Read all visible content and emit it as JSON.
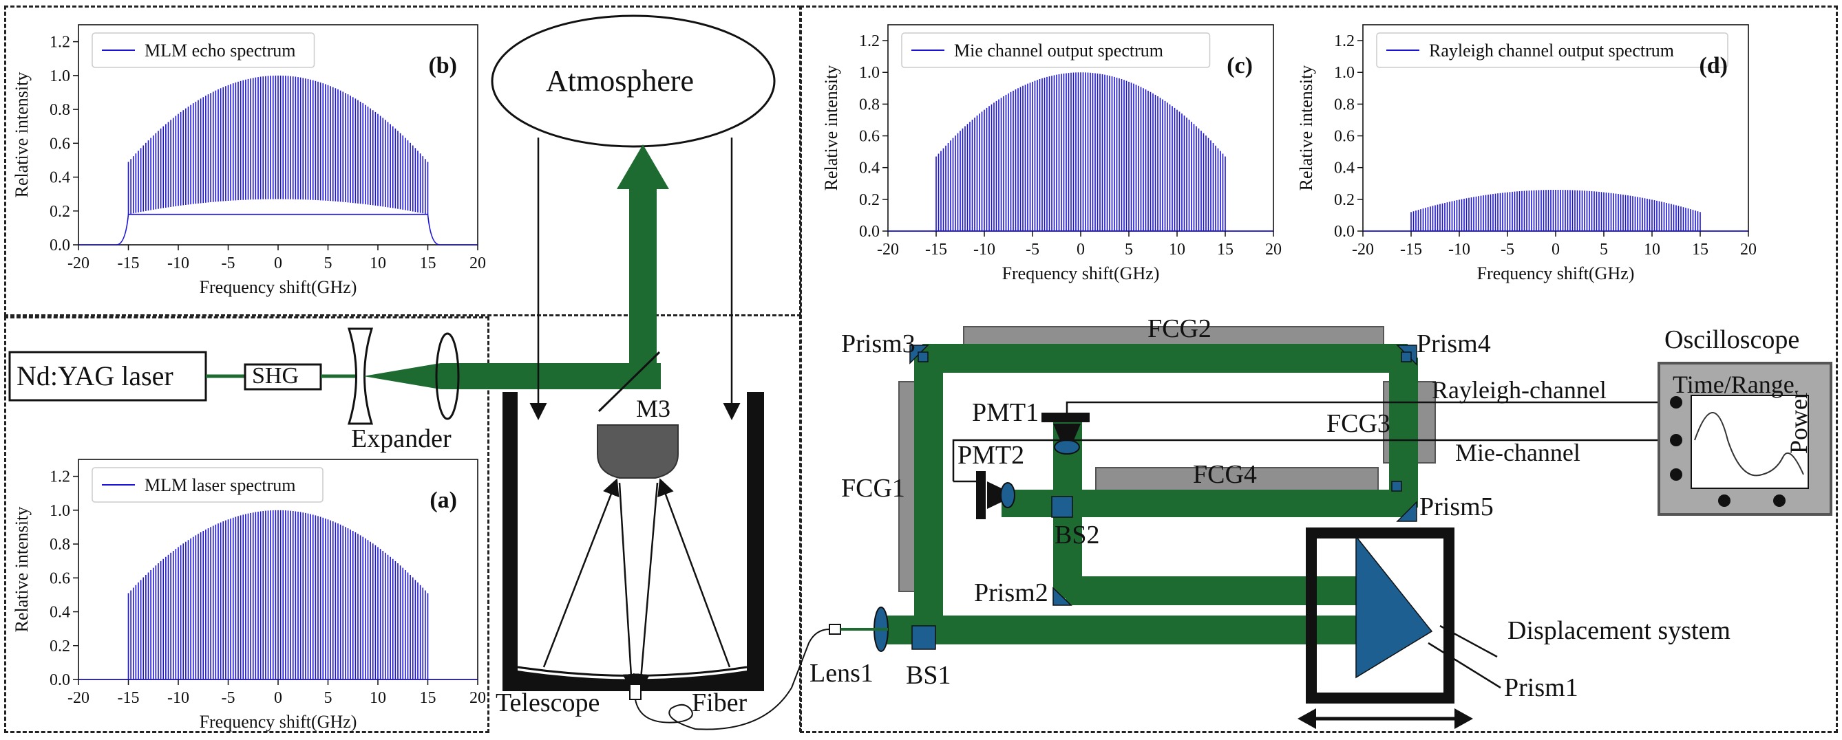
{
  "panel_b": {
    "tag": "(b)",
    "legend": "MLM echo spectrum",
    "xlabel": "Frequency shift(GHz)",
    "ylabel": "Relative intensity"
  },
  "panel_a": {
    "tag": "(a)",
    "legend": "MLM laser spectrum",
    "xlabel": "Frequency shift(GHz)",
    "ylabel": "Relative intensity"
  },
  "panel_c": {
    "tag": "(c)",
    "legend": "Mie channel output spectrum",
    "xlabel": "Frequency shift(GHz)",
    "ylabel": "Relative intensity"
  },
  "panel_d": {
    "tag": "(d)",
    "legend": "Rayleigh channel output spectrum",
    "xlabel": "Frequency shift(GHz)",
    "ylabel": "Relative intensity"
  },
  "axes": {
    "xticks": [
      "-20",
      "-15",
      "-10",
      "-5",
      "0",
      "5",
      "10",
      "15",
      "20"
    ],
    "yticks": [
      "0.0",
      "0.2",
      "0.4",
      "0.6",
      "0.8",
      "1.0",
      "1.2"
    ]
  },
  "labels": {
    "atmosphere": "Atmosphere",
    "laser": "Nd:YAG laser",
    "shg": "SHG",
    "expander": "Expander",
    "m3": "M3",
    "telescope": "Telescope",
    "fiber": "Fiber",
    "lens1": "Lens1",
    "bs1": "BS1",
    "bs2": "BS2",
    "prism1": "Prism1",
    "prism2": "Prism2",
    "prism3": "Prism3",
    "prism4": "Prism4",
    "prism5": "Prism5",
    "fcg1": "FCG1",
    "fcg2": "FCG2",
    "fcg3": "FCG3",
    "fcg4": "FCG4",
    "pmt1": "PMT1",
    "pmt2": "PMT2",
    "rayleigh_channel": "Rayleigh-channel",
    "mie_channel": "Mie-channel",
    "oscilloscope": "Oscilloscope",
    "time_range": "Time/Range",
    "power": "Power",
    "displacement": "Displacement system"
  },
  "colors": {
    "beam": "#1e6b32",
    "spectrum": "#1a12d6",
    "fcg": "#8f8f8f",
    "prism": "#1d5f91"
  },
  "chart_data": [
    {
      "type": "line",
      "id": "b",
      "series": [
        {
          "name": "MLM echo spectrum",
          "envelope": "comb",
          "upper_center": 1.0,
          "upper_edge": 0.49,
          "lower_center": 0.27,
          "lower_edge": 0.18,
          "range": [
            -15,
            15
          ]
        }
      ],
      "xlim": [
        -20,
        20
      ],
      "ylim": [
        0,
        1.3
      ],
      "xlabel": "Frequency shift(GHz)",
      "ylabel": "Relative intensity"
    },
    {
      "type": "line",
      "id": "a",
      "series": [
        {
          "name": "MLM laser spectrum",
          "envelope": "comb",
          "upper_center": 1.0,
          "upper_edge": 0.51,
          "lower_center": 0.0,
          "lower_edge": 0.0,
          "range": [
            -15,
            15
          ]
        }
      ],
      "xlim": [
        -20,
        20
      ],
      "ylim": [
        0,
        1.3
      ],
      "xlabel": "Frequency shift(GHz)",
      "ylabel": "Relative intensity"
    },
    {
      "type": "line",
      "id": "c",
      "series": [
        {
          "name": "Mie channel output spectrum",
          "envelope": "comb",
          "upper_center": 1.0,
          "upper_edge": 0.47,
          "lower_center": 0.0,
          "lower_edge": 0.0,
          "range": [
            -15,
            15
          ]
        }
      ],
      "xlim": [
        -20,
        20
      ],
      "ylim": [
        0,
        1.3
      ],
      "xlabel": "Frequency shift(GHz)",
      "ylabel": "Relative intensity"
    },
    {
      "type": "line",
      "id": "d",
      "series": [
        {
          "name": "Rayleigh channel output spectrum",
          "envelope": "comb",
          "upper_center": 0.26,
          "upper_edge": 0.12,
          "lower_center": 0.0,
          "lower_edge": 0.0,
          "range": [
            -15,
            15
          ]
        }
      ],
      "xlim": [
        -20,
        20
      ],
      "ylim": [
        0,
        1.3
      ],
      "xlabel": "Frequency shift(GHz)",
      "ylabel": "Relative intensity"
    }
  ]
}
